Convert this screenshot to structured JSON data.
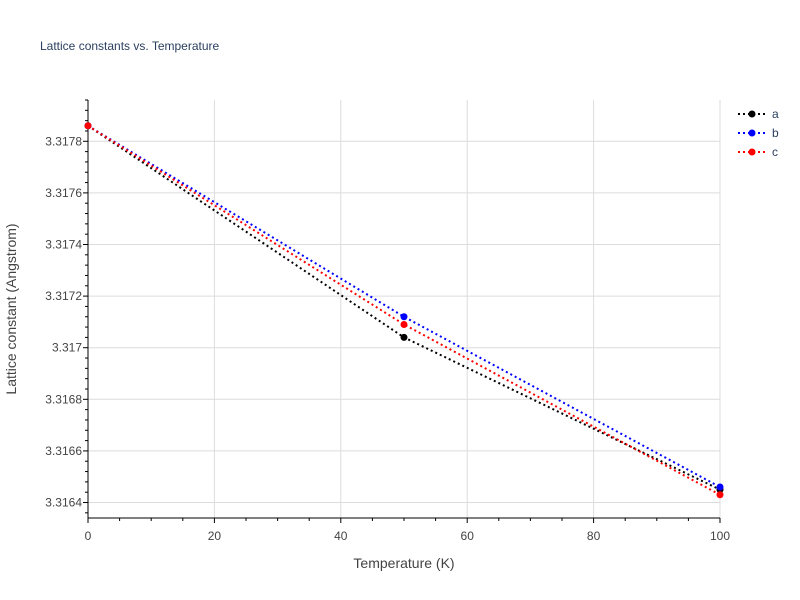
{
  "chart_data": {
    "type": "line",
    "title": "Lattice constants vs. Temperature",
    "xlabel": "Temperature (K)",
    "ylabel": "Lattice constant (Angstrom)",
    "xlim": [
      0,
      100
    ],
    "ylim": [
      3.31634,
      3.31796
    ],
    "x_ticks": [
      0,
      20,
      40,
      60,
      80,
      100
    ],
    "x_tick_labels": [
      "0",
      "20",
      "40",
      "60",
      "80",
      "100"
    ],
    "y_ticks": [
      3.3164,
      3.3166,
      3.3168,
      3.317,
      3.3172,
      3.3174,
      3.3176,
      3.3178
    ],
    "y_tick_labels": [
      "3.3164",
      "3.3166",
      "3.3168",
      "3.317",
      "3.3172",
      "3.3174",
      "3.3176",
      "3.3178"
    ],
    "grid": true,
    "legend_position": "top-right",
    "line_style": "dotted",
    "series": [
      {
        "name": "a",
        "color": "#000000",
        "x": [
          0,
          50,
          100
        ],
        "y": [
          3.31786,
          3.31704,
          3.31645
        ]
      },
      {
        "name": "b",
        "color": "#0000ff",
        "x": [
          0,
          50,
          100
        ],
        "y": [
          3.31786,
          3.31712,
          3.31646
        ]
      },
      {
        "name": "c",
        "color": "#ff0000",
        "x": [
          0,
          50,
          100
        ],
        "y": [
          3.31786,
          3.31709,
          3.31643
        ]
      }
    ]
  }
}
